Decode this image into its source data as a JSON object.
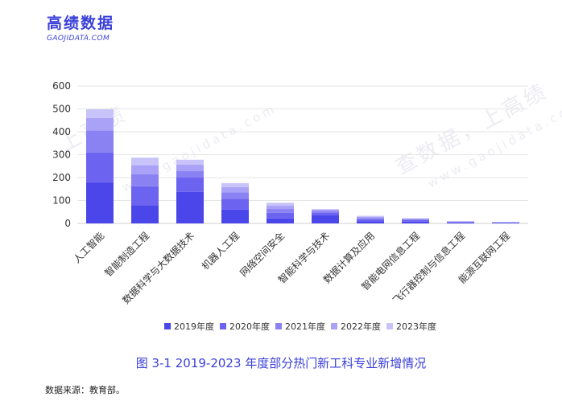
{
  "brand": {
    "name": "高绩数据",
    "url": "GAOJIDATA.COM"
  },
  "watermark": {
    "text_1": "上高绩",
    "text_2": "查数据，上高绩",
    "text_3": "www.gaojidata.com"
  },
  "caption": "图 3-1    2019-2023 年度部分热门新工科专业新增情况",
  "source": "数据来源：教育部。",
  "colors": {
    "accent": "#3a3fd9",
    "series": [
      "#4b46ea",
      "#6c63f0",
      "#8a82f3",
      "#a9a2f6",
      "#c8c3f9"
    ]
  },
  "chart_data": {
    "type": "bar",
    "stacked": true,
    "categories": [
      "人工智能",
      "智能制造工程",
      "数据科学与大数据技术",
      "机器人工程",
      "网络空间安全",
      "智能科学与技术",
      "数据计算及应用",
      "智能电网信息工程",
      "飞行器控制与信息工程",
      "能源互联网工程"
    ],
    "series": [
      {
        "name": "2019年度",
        "values": [
          180,
          80,
          138,
          60,
          22,
          35,
          10,
          8,
          4,
          3
        ]
      },
      {
        "name": "2020年度",
        "values": [
          130,
          82,
          62,
          48,
          24,
          12,
          8,
          6,
          2,
          1
        ]
      },
      {
        "name": "2021年度",
        "values": [
          95,
          52,
          28,
          28,
          17,
          8,
          6,
          4,
          2,
          1
        ]
      },
      {
        "name": "2022年度",
        "values": [
          55,
          40,
          28,
          22,
          14,
          5,
          5,
          3,
          1,
          1
        ]
      },
      {
        "name": "2023年度",
        "values": [
          38,
          33,
          22,
          18,
          13,
          3,
          4,
          2,
          1,
          0
        ]
      }
    ],
    "yticks": [
      0,
      100,
      200,
      300,
      400,
      500,
      600
    ],
    "ylim": [
      0,
      600
    ],
    "grid": true,
    "legend": "bottom"
  }
}
